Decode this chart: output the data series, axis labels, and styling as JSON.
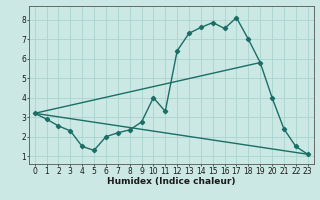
{
  "bg_color": "#cce8e4",
  "grid_color": "#aad4cf",
  "line_color": "#1a6e65",
  "line_width": 1.0,
  "marker": "D",
  "marker_size": 2.2,
  "xlabel": "Humidex (Indice chaleur)",
  "xlabel_fontsize": 6.5,
  "tick_fontsize": 5.5,
  "xlim": [
    -0.5,
    23.5
  ],
  "ylim": [
    0.6,
    8.7
  ],
  "xticks": [
    0,
    1,
    2,
    3,
    4,
    5,
    6,
    7,
    8,
    9,
    10,
    11,
    12,
    13,
    14,
    15,
    16,
    17,
    18,
    19,
    20,
    21,
    22,
    23
  ],
  "yticks": [
    1,
    2,
    3,
    4,
    5,
    6,
    7,
    8
  ],
  "curve1_x": [
    0,
    1,
    2,
    3,
    4,
    5,
    6,
    7,
    8,
    9,
    10,
    11,
    12,
    13,
    14,
    15,
    16,
    17,
    18,
    19,
    20,
    21,
    22,
    23
  ],
  "curve1_y": [
    3.2,
    2.9,
    2.55,
    2.3,
    1.5,
    1.3,
    2.0,
    2.2,
    2.35,
    2.75,
    4.0,
    3.3,
    6.4,
    7.3,
    7.6,
    7.85,
    7.55,
    8.1,
    7.0,
    5.8,
    4.0,
    2.4,
    1.5,
    1.1
  ],
  "curve2_x": [
    0,
    19
  ],
  "curve2_y": [
    3.2,
    5.8
  ],
  "curve3_x": [
    0,
    23
  ],
  "curve3_y": [
    3.2,
    1.1
  ]
}
